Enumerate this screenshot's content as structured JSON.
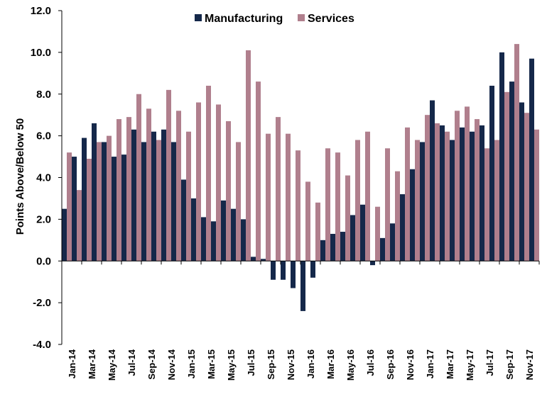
{
  "colors": {
    "manufacturing": "#15284A",
    "services": "#B07F8D",
    "axis": "#000000"
  },
  "chart_data": {
    "type": "bar",
    "ylabel": "Points Above/Below 50",
    "xlabel": "",
    "title": "",
    "ylim": [
      -4.0,
      12.0
    ],
    "yticks": [
      "-4.0",
      "-2.0",
      "0.0",
      "2.0",
      "4.0",
      "6.0",
      "8.0",
      "10.0",
      "12.0"
    ],
    "grid": false,
    "legend_position": "top-center",
    "categories": [
      "Jan-14",
      "Feb-14",
      "Mar-14",
      "Apr-14",
      "May-14",
      "Jun-14",
      "Jul-14",
      "Aug-14",
      "Sep-14",
      "Oct-14",
      "Nov-14",
      "Dec-14",
      "Jan-15",
      "Feb-15",
      "Mar-15",
      "Apr-15",
      "May-15",
      "Jun-15",
      "Jul-15",
      "Aug-15",
      "Sep-15",
      "Oct-15",
      "Nov-15",
      "Dec-15",
      "Jan-16",
      "Feb-16",
      "Mar-16",
      "Apr-16",
      "May-16",
      "Jun-16",
      "Jul-16",
      "Aug-16",
      "Sep-16",
      "Oct-16",
      "Nov-16",
      "Dec-16",
      "Jan-17",
      "Feb-17",
      "Mar-17",
      "Apr-17",
      "May-17",
      "Jun-17",
      "Jul-17",
      "Aug-17",
      "Sep-17",
      "Oct-17",
      "Nov-17",
      "Dec-17"
    ],
    "tick_labels": [
      "Jan-14",
      "Mar-14",
      "May-14",
      "Jul-14",
      "Sep-14",
      "Nov-14",
      "Jan-15",
      "Mar-15",
      "May-15",
      "Jul-15",
      "Sep-15",
      "Nov-15",
      "Jan-16",
      "Mar-16",
      "May-16",
      "Jul-16",
      "Sep-16",
      "Nov-16",
      "Jan-17",
      "Mar-17",
      "May-17",
      "Jul-17",
      "Sep-17",
      "Nov-17"
    ],
    "series": [
      {
        "name": "Manufacturing",
        "values": [
          2.5,
          5.0,
          5.9,
          6.6,
          5.7,
          5.0,
          5.1,
          6.3,
          5.7,
          6.2,
          6.3,
          5.7,
          3.9,
          3.0,
          2.1,
          1.9,
          2.9,
          2.5,
          2.0,
          0.2,
          0.1,
          -0.9,
          -0.9,
          -1.3,
          -2.4,
          -0.8,
          1.0,
          1.3,
          1.4,
          2.2,
          2.7,
          -0.2,
          1.1,
          1.8,
          3.2,
          4.4,
          5.7,
          7.7,
          6.5,
          5.8,
          6.4,
          6.2,
          6.5,
          8.4,
          10.0,
          8.6,
          7.6,
          9.7
        ]
      },
      {
        "name": "Services",
        "values": [
          5.2,
          3.4,
          4.9,
          5.7,
          6.0,
          6.8,
          6.9,
          8.0,
          7.3,
          5.8,
          8.2,
          7.2,
          6.2,
          7.6,
          8.4,
          7.5,
          6.7,
          5.7,
          10.1,
          8.6,
          6.1,
          6.9,
          6.1,
          5.3,
          3.8,
          2.8,
          5.4,
          5.2,
          4.1,
          5.8,
          6.2,
          2.6,
          5.4,
          4.3,
          6.4,
          5.8,
          7.0,
          6.6,
          6.2,
          7.2,
          7.4,
          6.8,
          5.4,
          5.8,
          8.1,
          10.4,
          7.1,
          6.3
        ]
      }
    ]
  }
}
